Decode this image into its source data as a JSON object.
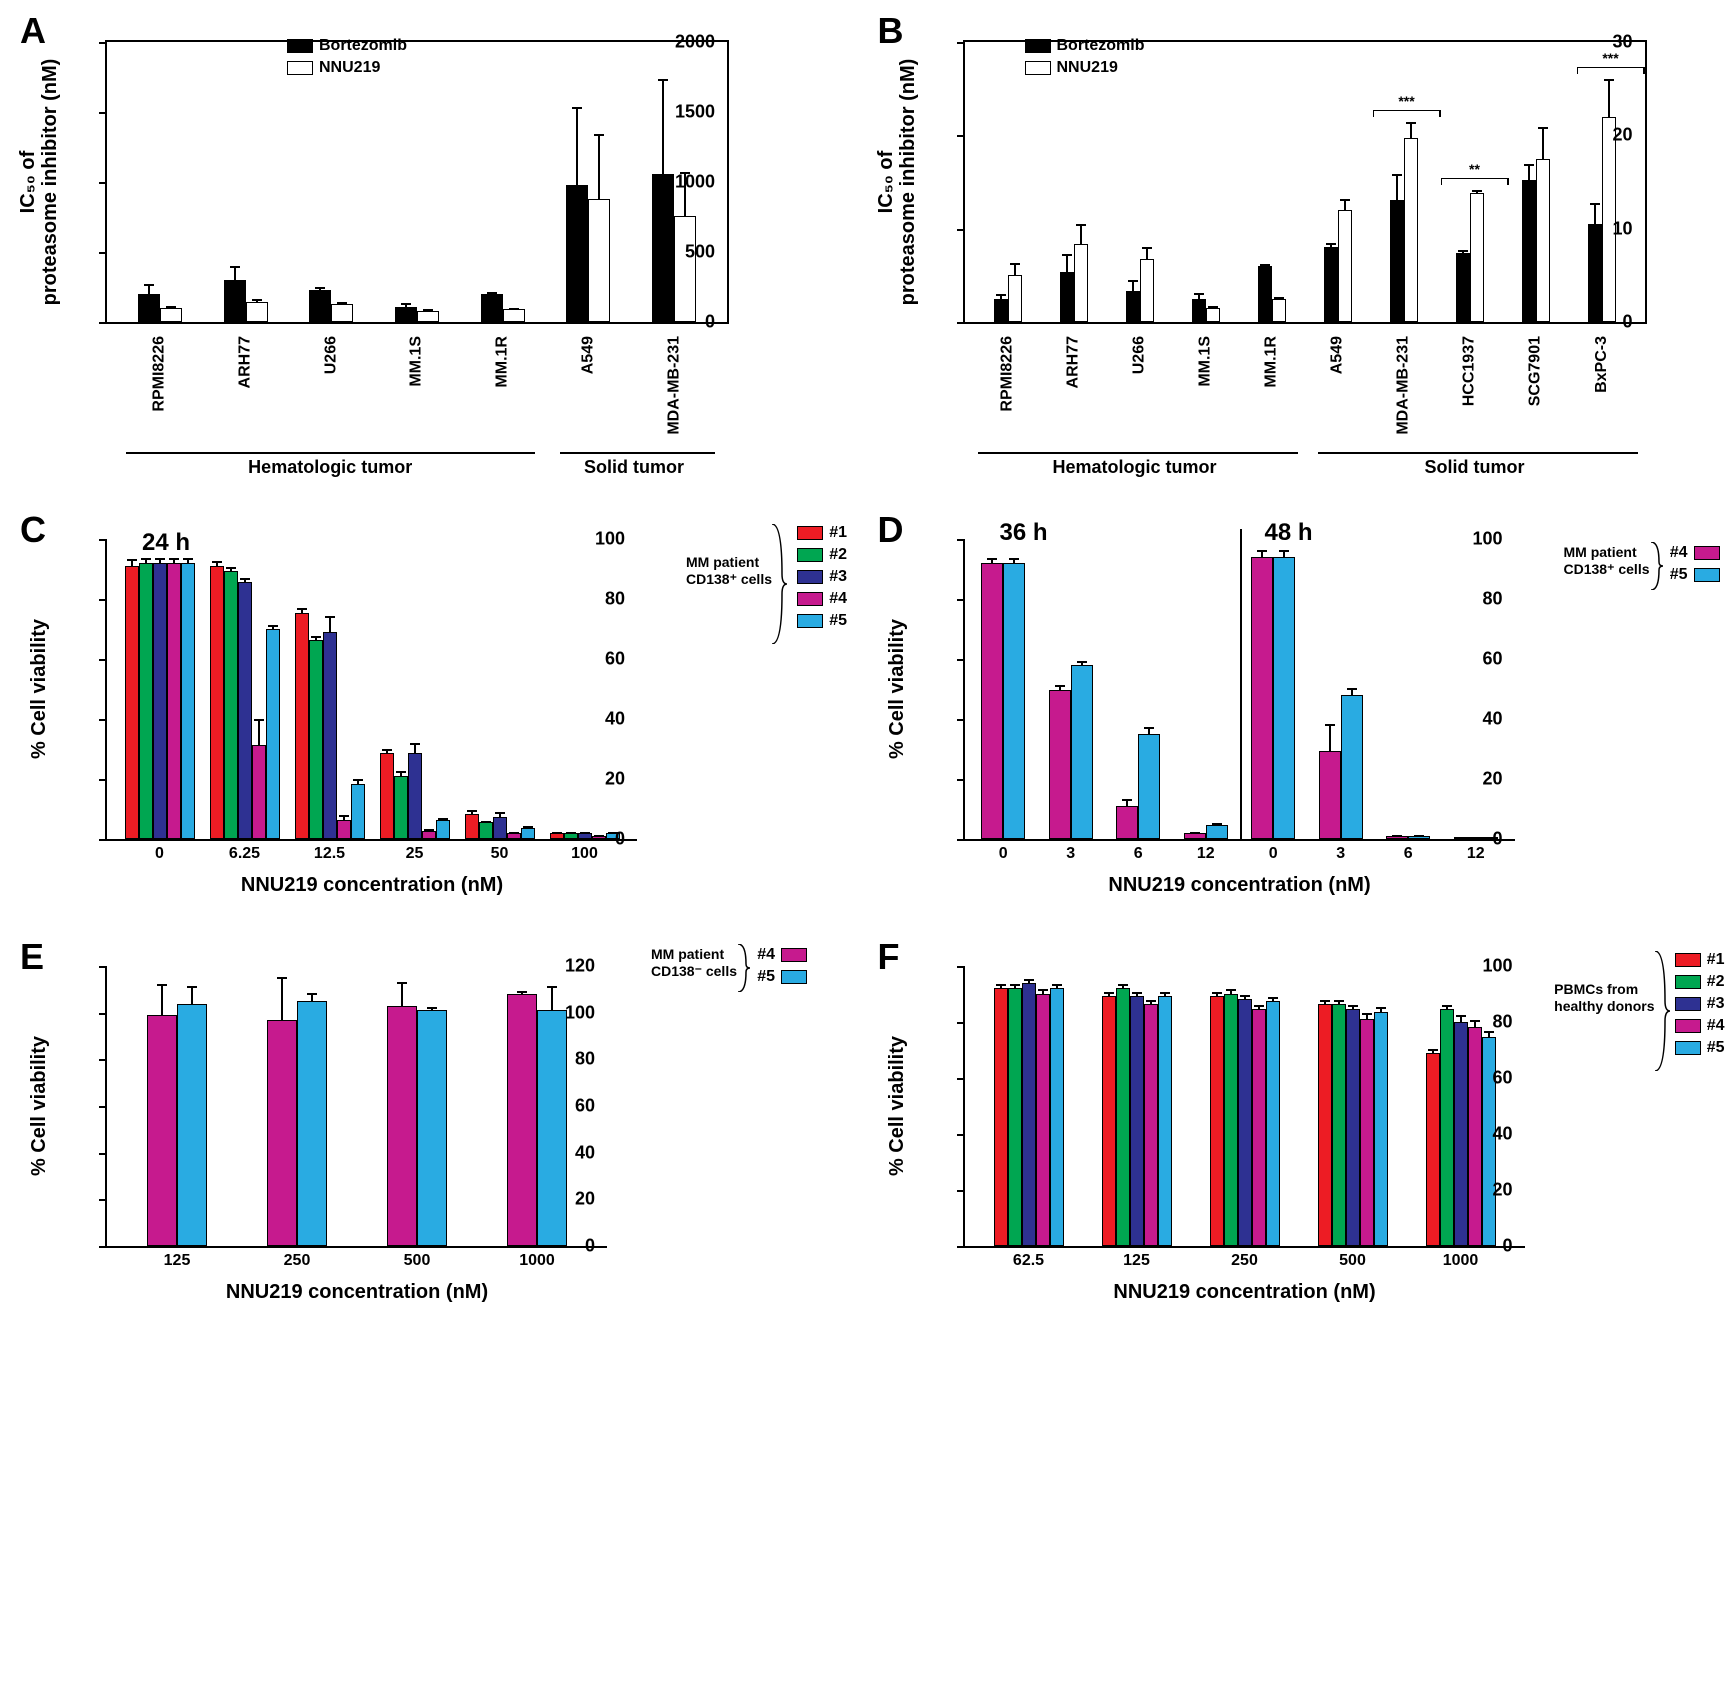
{
  "colors": {
    "black": "#000000",
    "white": "#ffffff",
    "red": "#ed1c24",
    "green": "#00a651",
    "blue": "#2e3192",
    "magenta": "#c61a8e",
    "cyan": "#29abe2"
  },
  "panelA": {
    "letter": "A",
    "type": "bar",
    "ylabel_line1": "IC₅₀ of",
    "ylabel_line2": "proteasome inhibitor (nM)",
    "ylim": [
      0,
      2000
    ],
    "yticks": [
      0,
      500,
      1000,
      1500,
      2000
    ],
    "legend": [
      {
        "label": "Bortezomib",
        "fill": "#000000"
      },
      {
        "label": "NNU219",
        "fill": "#ffffff"
      }
    ],
    "groups": [
      {
        "label": "Hematologic tumor",
        "range": [
          0,
          4
        ]
      },
      {
        "label": "Solid tumor",
        "range": [
          5,
          6
        ]
      }
    ],
    "categories": [
      "RPMI8226",
      "ARH77",
      "U266",
      "MM.1S",
      "MM.1R",
      "A549",
      "MDA-MB-231"
    ],
    "series": [
      {
        "name": "Bortezomib",
        "fill": "#000000",
        "values": [
          200,
          300,
          230,
          110,
          200,
          980,
          1060
        ],
        "errs": [
          80,
          110,
          30,
          30,
          25,
          560,
          680
        ]
      },
      {
        "name": "NNU219",
        "fill": "#ffffff",
        "values": [
          100,
          140,
          130,
          80,
          95,
          880,
          760
        ],
        "errs": [
          20,
          30,
          20,
          20,
          15,
          470,
          320
        ]
      }
    ]
  },
  "panelB": {
    "letter": "B",
    "type": "bar",
    "ylabel_line1": "IC₅₀ of",
    "ylabel_line2": "proteasome inhibitor (nM)",
    "ylim": [
      0,
      30
    ],
    "yticks": [
      0,
      10,
      20,
      30
    ],
    "legend": [
      {
        "label": "Bortezomib",
        "fill": "#000000"
      },
      {
        "label": "NNU219",
        "fill": "#ffffff"
      }
    ],
    "groups": [
      {
        "label": "Hematologic tumor",
        "range": [
          0,
          4
        ]
      },
      {
        "label": "Solid tumor",
        "range": [
          5,
          9
        ]
      }
    ],
    "categories": [
      "RPMI8226",
      "ARH77",
      "U266",
      "MM.1S",
      "MM.1R",
      "A549",
      "MDA-MB-231",
      "HCC1937",
      "SCG7901",
      "BxPC-3"
    ],
    "series": [
      {
        "name": "Bortezomib",
        "fill": "#000000",
        "values": [
          2.5,
          5.4,
          3.3,
          2.5,
          6.0,
          8.0,
          13.1,
          7.4,
          15.2,
          10.5
        ],
        "errs": [
          0.6,
          2.0,
          1.3,
          0.7,
          0.3,
          0.6,
          2.9,
          0.4,
          1.8,
          2.4
        ]
      },
      {
        "name": "NNU219",
        "fill": "#ffffff",
        "values": [
          5.0,
          8.4,
          6.8,
          1.5,
          2.5,
          12.0,
          19.7,
          13.8,
          17.5,
          22.0
        ],
        "errs": [
          1.4,
          2.2,
          1.3,
          0.3,
          0.3,
          1.3,
          1.8,
          0.4,
          3.5,
          4.1
        ]
      }
    ],
    "significance": [
      {
        "idx": 6,
        "text": "***"
      },
      {
        "idx": 7,
        "text": "**"
      },
      {
        "idx": 9,
        "text": "***"
      }
    ]
  },
  "panelC": {
    "letter": "C",
    "type": "bar",
    "ylabel": "% Cell viability",
    "xlabel": "NNU219 concentration (nM)",
    "ylim": [
      0,
      100
    ],
    "yticks": [
      0,
      20,
      40,
      60,
      80,
      100
    ],
    "time_label": "24 h",
    "legend_title_line1": "MM patient",
    "legend_title_line2": "CD138⁺ cells",
    "legend": [
      {
        "label": "#1",
        "fill": "#ed1c24"
      },
      {
        "label": "#2",
        "fill": "#00a651"
      },
      {
        "label": "#3",
        "fill": "#2e3192"
      },
      {
        "label": "#4",
        "fill": "#c61a8e"
      },
      {
        "label": "#5",
        "fill": "#29abe2"
      }
    ],
    "categories": [
      "0",
      "6.25",
      "12.5",
      "25",
      "50",
      "100"
    ],
    "series": [
      {
        "fill": "#ed1c24",
        "values": [
          99,
          99,
          82,
          31,
          9,
          2
        ],
        "errs": [
          3,
          2,
          2,
          2,
          2,
          1
        ]
      },
      {
        "fill": "#00a651",
        "values": [
          100,
          97,
          72,
          23,
          6,
          2
        ],
        "errs": [
          2,
          2,
          2,
          2,
          1,
          1
        ]
      },
      {
        "fill": "#2e3192",
        "values": [
          100,
          93,
          75,
          31,
          8,
          2
        ],
        "errs": [
          2,
          2,
          6,
          4,
          2,
          1
        ]
      },
      {
        "fill": "#c61a8e",
        "values": [
          100,
          34,
          7,
          3,
          2,
          1
        ],
        "errs": [
          2,
          10,
          2,
          1,
          1,
          1
        ]
      },
      {
        "fill": "#29abe2",
        "values": [
          100,
          76,
          20,
          7,
          4,
          2
        ],
        "errs": [
          2,
          2,
          2,
          1,
          1,
          1
        ]
      }
    ]
  },
  "panelD": {
    "letter": "D",
    "type": "bar",
    "ylabel": "% Cell viability",
    "xlabel": "NNU219 concentration (nM)",
    "ylim": [
      0,
      100
    ],
    "yticks": [
      0,
      20,
      40,
      60,
      80,
      100
    ],
    "time_labels": [
      "36 h",
      "48 h"
    ],
    "legend_title_line1": "MM patient",
    "legend_title_line2": "CD138⁺ cells",
    "legend": [
      {
        "label": "#4",
        "fill": "#c61a8e"
      },
      {
        "label": "#5",
        "fill": "#29abe2"
      }
    ],
    "subplots": [
      {
        "categories": [
          "0",
          "3",
          "6",
          "12"
        ],
        "series": [
          {
            "fill": "#c61a8e",
            "values": [
              100,
              54,
              12,
              2
            ],
            "errs": [
              2,
              2,
              3,
              1
            ]
          },
          {
            "fill": "#29abe2",
            "values": [
              100,
              63,
              38,
              5
            ],
            "errs": [
              2,
              2,
              3,
              1
            ]
          }
        ]
      },
      {
        "categories": [
          "0",
          "3",
          "6",
          "12"
        ],
        "series": [
          {
            "fill": "#c61a8e",
            "values": [
              102,
              32,
              1,
              0
            ],
            "errs": [
              3,
              10,
              1,
              0
            ]
          },
          {
            "fill": "#29abe2",
            "values": [
              102,
              52,
              1,
              0
            ],
            "errs": [
              3,
              3,
              1,
              0
            ]
          }
        ]
      }
    ]
  },
  "panelE": {
    "letter": "E",
    "type": "bar",
    "ylabel": "% Cell viability",
    "xlabel": "NNU219 concentration (nM)",
    "ylim": [
      0,
      120
    ],
    "yticks": [
      0,
      20,
      40,
      60,
      80,
      100,
      120
    ],
    "legend_title_line1": "MM patient",
    "legend_title_line2": "CD138⁻ cells",
    "legend": [
      {
        "label": "#4",
        "fill": "#c61a8e"
      },
      {
        "label": "#5",
        "fill": "#29abe2"
      }
    ],
    "categories": [
      "125",
      "250",
      "500",
      "1000"
    ],
    "series": [
      {
        "fill": "#c61a8e",
        "values": [
          101,
          99,
          105,
          110
        ],
        "errs": [
          14,
          19,
          11,
          2
        ]
      },
      {
        "fill": "#29abe2",
        "values": [
          106,
          107,
          103,
          103
        ],
        "errs": [
          8,
          4,
          2,
          11
        ]
      }
    ]
  },
  "panelF": {
    "letter": "F",
    "type": "bar",
    "ylabel": "% Cell viability",
    "xlabel": "NNU219 concentration (nM)",
    "ylim": [
      0,
      100
    ],
    "yticks": [
      0,
      20,
      40,
      60,
      80,
      100
    ],
    "legend_title_line1": "PBMCs from",
    "legend_title_line2": "healthy donors",
    "legend": [
      {
        "label": "#1",
        "fill": "#ed1c24"
      },
      {
        "label": "#2",
        "fill": "#00a651"
      },
      {
        "label": "#3",
        "fill": "#2e3192"
      },
      {
        "label": "#4",
        "fill": "#c61a8e"
      },
      {
        "label": "#5",
        "fill": "#29abe2"
      }
    ],
    "categories": [
      "62.5",
      "125",
      "250",
      "500",
      "1000"
    ],
    "series": [
      {
        "fill": "#ed1c24",
        "values": [
          100,
          97,
          97,
          94,
          75
        ],
        "errs": [
          2,
          2,
          2,
          2,
          2
        ]
      },
      {
        "fill": "#00a651",
        "values": [
          100,
          100,
          98,
          94,
          92
        ],
        "errs": [
          2,
          2,
          2,
          2,
          2
        ]
      },
      {
        "fill": "#2e3192",
        "values": [
          102,
          97,
          96,
          92,
          87
        ],
        "errs": [
          2,
          2,
          2,
          2,
          3
        ]
      },
      {
        "fill": "#c61a8e",
        "values": [
          98,
          94,
          92,
          88,
          85
        ],
        "errs": [
          2,
          2,
          2,
          3,
          3
        ]
      },
      {
        "fill": "#29abe2",
        "values": [
          100,
          97,
          95,
          91,
          81
        ],
        "errs": [
          2,
          2,
          2,
          2,
          3
        ]
      }
    ]
  }
}
